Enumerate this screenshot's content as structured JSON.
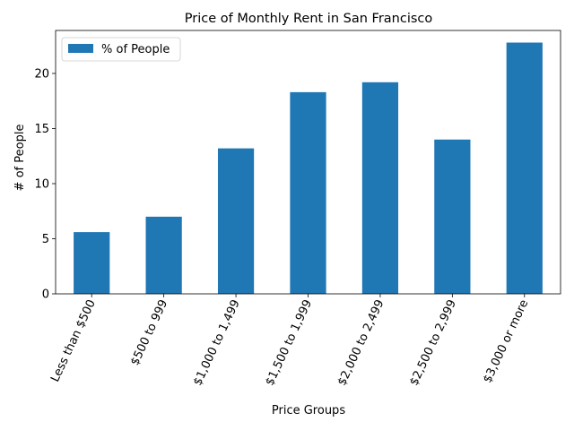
{
  "chart_data": {
    "type": "bar",
    "title": "Price of Monthly Rent in San Francisco",
    "xlabel": "Price Groups",
    "ylabel": "# of People",
    "categories": [
      "Less than $500",
      "$500 to 999",
      "$1,000 to 1,499",
      "$1,500 to 1,999",
      "$2,000 to 2,499",
      "$2,500 to 2,999",
      "$3,000 or more"
    ],
    "series": [
      {
        "name": "% of People",
        "values": [
          5.6,
          7.0,
          13.2,
          18.3,
          19.2,
          14.0,
          22.8
        ],
        "color": "#1f77b4"
      }
    ],
    "yticks": [
      0,
      5,
      10,
      15,
      20
    ],
    "ylim": [
      0,
      23.9
    ],
    "xtick_rotation": 65,
    "legend": "top-left",
    "grid": false
  }
}
